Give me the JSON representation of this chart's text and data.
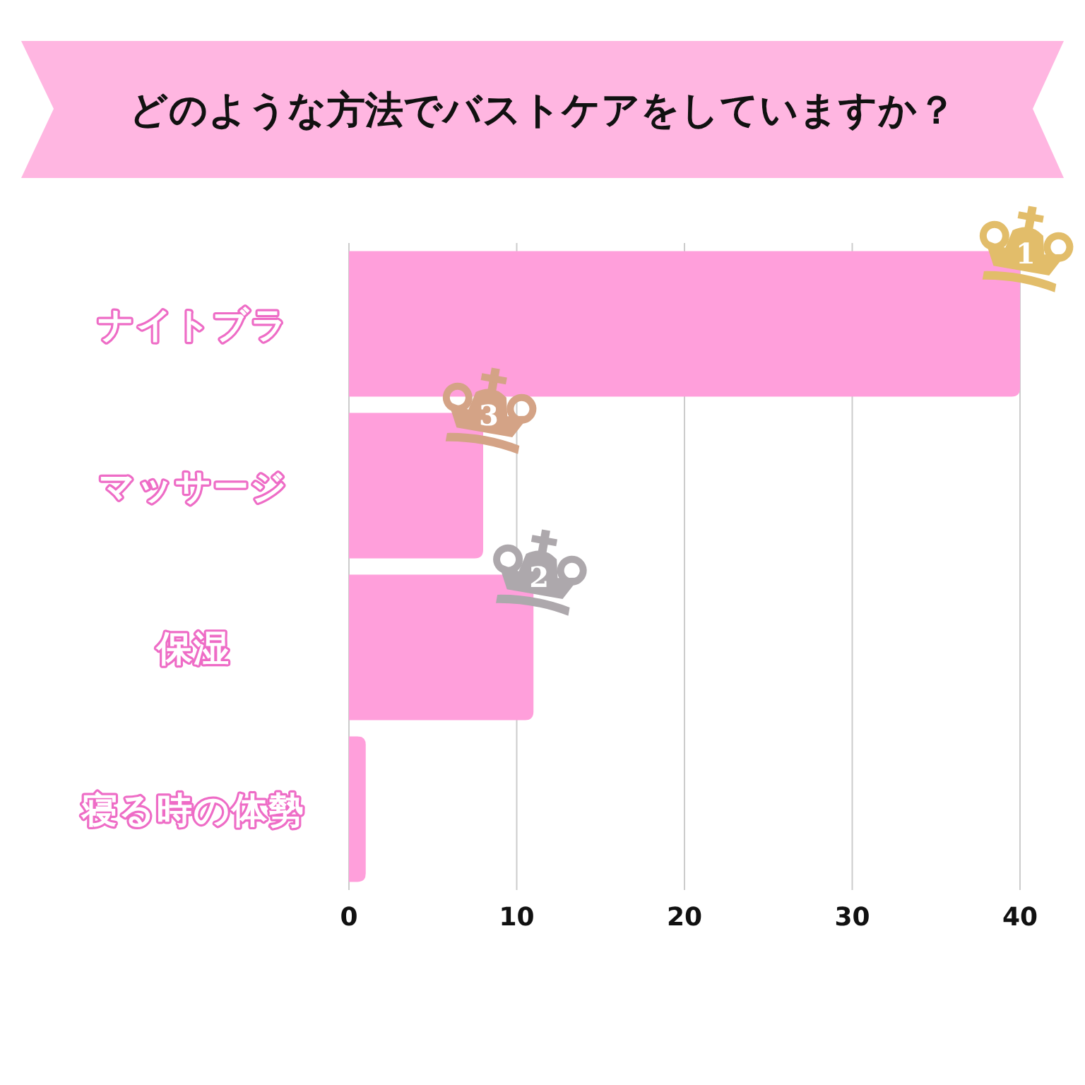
{
  "chart_data": {
    "type": "bar",
    "orientation": "horizontal",
    "title": "どのような方法でバストケアをしていますか？",
    "categories": [
      "ナイトブラ",
      "マッサージ",
      "保湿",
      "寝る時の体勢"
    ],
    "values": [
      40,
      8,
      11,
      1
    ],
    "color": "#ff9fdb",
    "xlim": [
      0,
      40
    ],
    "xticks": [
      0,
      10,
      20,
      30,
      40
    ],
    "grid": "x",
    "annotations": [
      {
        "text": "1",
        "x": 40,
        "y": "ナイトブラ"
      },
      {
        "text": "3",
        "x": 8,
        "y": "マッサージ"
      },
      {
        "text": "2",
        "x": 11,
        "y": "保湿"
      }
    ]
  }
}
